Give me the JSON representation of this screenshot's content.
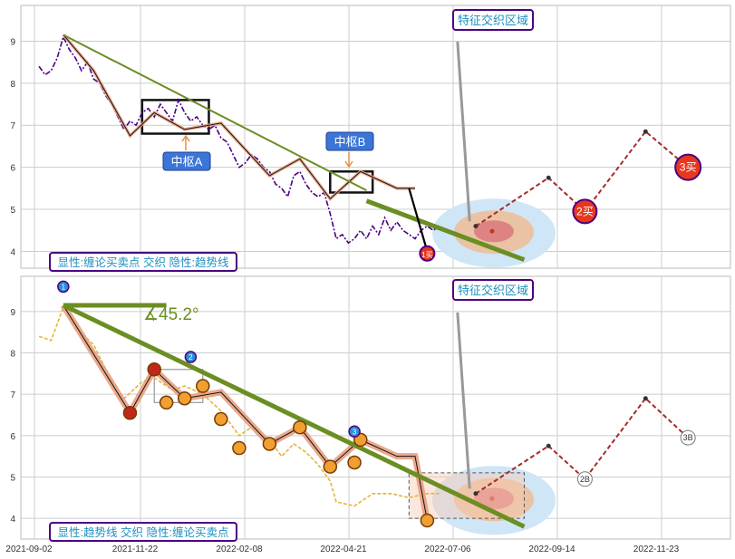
{
  "chart_data": [
    {
      "type": "line",
      "panel": "top",
      "x_ticks": [],
      "y_ticks": [
        "4",
        "5",
        "6",
        "7",
        "8",
        "9"
      ],
      "ylim": [
        3.6,
        9.85
      ],
      "grid": true,
      "legend_box": "显性:缠论买卖点 交织 隐性:趋势线",
      "title_box": "特征交织区域",
      "annotations": {
        "pivot_a": "中枢A",
        "pivot_b": "中枢B",
        "buy1": "1买",
        "buy2": "2买",
        "buy3": "3买"
      },
      "series": [
        {
          "role": "price",
          "color": "#4b0082",
          "values": [
            [
              3,
              8.4
            ],
            [
              4,
              8.2
            ],
            [
              5,
              8.3
            ],
            [
              6,
              8.6
            ],
            [
              7,
              9.1
            ],
            [
              8,
              8.8
            ],
            [
              9,
              8.6
            ],
            [
              10,
              8.3
            ],
            [
              11,
              8.5
            ],
            [
              12,
              8.1
            ],
            [
              13,
              8.0
            ],
            [
              14,
              7.7
            ],
            [
              15,
              7.5
            ],
            [
              16,
              7.2
            ],
            [
              17,
              6.9
            ],
            [
              18,
              7.1
            ],
            [
              19,
              7.0
            ],
            [
              20,
              7.3
            ],
            [
              21,
              7.4
            ],
            [
              22,
              7.2
            ],
            [
              23,
              7.5
            ],
            [
              24,
              7.3
            ],
            [
              25,
              7.1
            ],
            [
              26,
              7.6
            ],
            [
              27,
              7.3
            ],
            [
              28,
              7.1
            ],
            [
              29,
              7.2
            ],
            [
              30,
              7.0
            ],
            [
              31,
              6.9
            ],
            [
              32,
              7.0
            ],
            [
              33,
              6.7
            ],
            [
              34,
              6.6
            ],
            [
              35,
              6.3
            ],
            [
              36,
              6.0
            ],
            [
              37,
              6.1
            ],
            [
              38,
              6.3
            ],
            [
              39,
              6.2
            ],
            [
              40,
              6.0
            ],
            [
              41,
              5.9
            ],
            [
              42,
              5.6
            ],
            [
              43,
              5.5
            ],
            [
              44,
              5.3
            ],
            [
              45,
              5.8
            ],
            [
              46,
              5.9
            ],
            [
              47,
              5.6
            ],
            [
              48,
              5.4
            ],
            [
              49,
              5.3
            ],
            [
              50,
              5.4
            ],
            [
              51,
              4.9
            ],
            [
              52,
              4.3
            ],
            [
              53,
              4.4
            ],
            [
              54,
              4.2
            ],
            [
              55,
              4.3
            ],
            [
              56,
              4.5
            ],
            [
              57,
              4.3
            ],
            [
              58,
              4.6
            ],
            [
              59,
              4.4
            ],
            [
              60,
              4.8
            ],
            [
              61,
              4.5
            ],
            [
              62,
              4.7
            ],
            [
              63,
              4.5
            ],
            [
              64,
              4.4
            ],
            [
              65,
              4.3
            ],
            [
              66,
              4.5
            ],
            [
              67,
              4.6
            ],
            [
              68,
              4.5
            ],
            [
              69,
              4.6
            ]
          ]
        },
        {
          "role": "stroke",
          "color": "#e8a080",
          "values": [
            [
              7,
              9.15
            ],
            [
              12,
              8.3
            ],
            [
              18,
              6.75
            ],
            [
              22,
              7.3
            ],
            [
              27,
              6.9
            ],
            [
              33,
              7.05
            ],
            [
              41,
              5.8
            ],
            [
              46,
              6.2
            ],
            [
              51,
              5.25
            ],
            [
              56,
              5.9
            ],
            [
              62,
              5.5
            ],
            [
              65,
              5.5
            ]
          ]
        },
        {
          "role": "trend",
          "color": "#6b8e23",
          "values": [
            [
              7,
              9.15
            ],
            [
              57,
              5.45
            ]
          ]
        },
        {
          "role": "trend_tail",
          "color": "#6b8e23",
          "values": [
            [
              57,
              5.2
            ],
            [
              83,
              3.8
            ]
          ]
        },
        {
          "role": "stroke_black",
          "color": "#000000",
          "values": [
            [
              64,
              5.5
            ],
            [
              67,
              4.0
            ]
          ]
        },
        {
          "role": "projection",
          "color": "#a52a2a",
          "values": [
            [
              75,
              4.6
            ],
            [
              87,
              5.75
            ],
            [
              93,
              4.95
            ],
            [
              103,
              6.85
            ],
            [
              110,
              6.0
            ]
          ]
        }
      ]
    },
    {
      "type": "line",
      "panel": "bottom",
      "x_ticks": [
        "2021-09-02",
        "2021-11-22",
        "2022-02-08",
        "2022-04-21",
        "2022-07-06",
        "2022-09-14",
        "2022-11-23"
      ],
      "y_ticks": [
        "4",
        "5",
        "6",
        "7",
        "8",
        "9"
      ],
      "ylim": [
        3.5,
        9.85
      ],
      "grid": true,
      "legend_box": "显性:趋势线 交织 隐性:缠论买卖点",
      "title_box": "特征交织区域",
      "angle_label": "∡45.2°",
      "annotations": {
        "buy2_b": "2B",
        "buy3_b": "3B",
        "marker_1": "1",
        "marker_2": "2",
        "marker_3": "3"
      },
      "series": [
        {
          "role": "price",
          "color": "#e3b53a",
          "values": [
            [
              3,
              8.4
            ],
            [
              5,
              8.3
            ],
            [
              7,
              9.1
            ],
            [
              9,
              8.6
            ],
            [
              12,
              8.2
            ],
            [
              14,
              7.6
            ],
            [
              17,
              6.9
            ],
            [
              20,
              7.3
            ],
            [
              22,
              7.4
            ],
            [
              25,
              7.1
            ],
            [
              27,
              7.2
            ],
            [
              30,
              7.0
            ],
            [
              33,
              6.6
            ],
            [
              36,
              6.0
            ],
            [
              38,
              6.2
            ],
            [
              41,
              5.9
            ],
            [
              43,
              5.5
            ],
            [
              45,
              5.8
            ],
            [
              47,
              5.6
            ],
            [
              49,
              5.3
            ],
            [
              51,
              4.9
            ],
            [
              52,
              4.4
            ],
            [
              55,
              4.3
            ],
            [
              58,
              4.6
            ],
            [
              61,
              4.6
            ],
            [
              64,
              4.5
            ],
            [
              67,
              4.6
            ],
            [
              69,
              4.6
            ]
          ]
        },
        {
          "role": "stroke",
          "color": "#e8a080",
          "values": [
            [
              7,
              9.15
            ],
            [
              18,
              6.55
            ],
            [
              22,
              7.6
            ],
            [
              27,
              6.9
            ],
            [
              33,
              7.05
            ],
            [
              41,
              5.8
            ],
            [
              46,
              6.2
            ],
            [
              51,
              5.25
            ],
            [
              56,
              5.9
            ],
            [
              62,
              5.5
            ],
            [
              65,
              5.5
            ],
            [
              67,
              3.95
            ]
          ]
        },
        {
          "role": "trend",
          "color": "#6b8e23",
          "values": [
            [
              7,
              9.15
            ],
            [
              83,
              3.8
            ]
          ]
        },
        {
          "role": "horizontal",
          "color": "#6b8e23",
          "values": [
            [
              7,
              9.15
            ],
            [
              24,
              9.15
            ]
          ]
        },
        {
          "role": "projection",
          "color": "#a52a2a",
          "values": [
            [
              75,
              4.6
            ],
            [
              87,
              5.75
            ],
            [
              93,
              4.95
            ],
            [
              103,
              6.9
            ],
            [
              110,
              5.95
            ]
          ]
        }
      ]
    }
  ]
}
